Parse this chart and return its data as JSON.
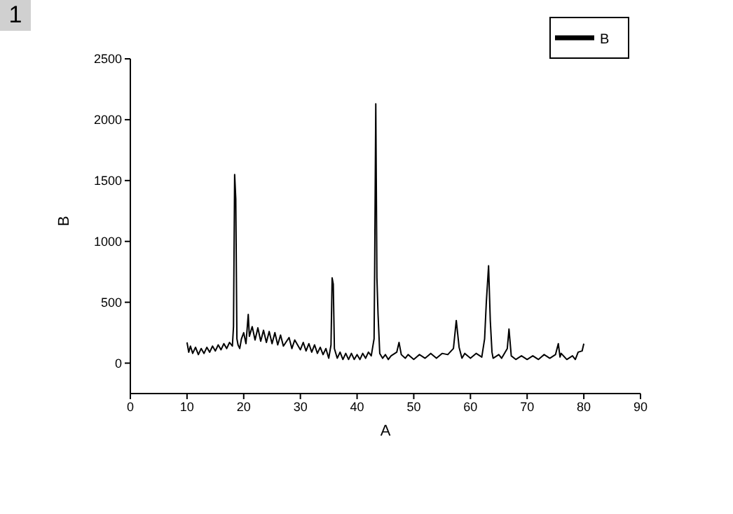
{
  "chart_data": {
    "type": "line",
    "xlabel": "A",
    "ylabel": "B",
    "annotations": [
      "1"
    ],
    "xlim": [
      0,
      90
    ],
    "xticks": [
      0,
      10,
      20,
      30,
      40,
      50,
      60,
      70,
      80,
      90
    ],
    "ylim": [
      -250,
      2500
    ],
    "yticks": [
      0,
      500,
      1000,
      1500,
      2000,
      2500
    ],
    "grid": false,
    "legend": "top right",
    "marker": "none",
    "line_style": "solid",
    "x": [
      10,
      10.3,
      10.6,
      11,
      11.5,
      12,
      12.5,
      13,
      13.5,
      14,
      14.5,
      15,
      15.5,
      16,
      16.5,
      17,
      17.5,
      18,
      18.2,
      18.4,
      18.6,
      18.8,
      19,
      19.3,
      19.6,
      20,
      20.4,
      20.8,
      21,
      21.5,
      22,
      22.5,
      23,
      23.5,
      24,
      24.5,
      25,
      25.5,
      26,
      26.5,
      27,
      28,
      28.5,
      29,
      30,
      30.5,
      31,
      31.5,
      32,
      32.5,
      33,
      33.5,
      34,
      34.5,
      35,
      35.4,
      35.6,
      35.8,
      36,
      36.5,
      37,
      37.5,
      38,
      38.5,
      39,
      39.5,
      40,
      40.5,
      41,
      41.5,
      42,
      42.5,
      43,
      43.1,
      43.3,
      43.5,
      43.7,
      44,
      44.5,
      45,
      45.5,
      46,
      47,
      47.4,
      47.8,
      48.5,
      49,
      50,
      51,
      52,
      53,
      54,
      55,
      56,
      57,
      57.5,
      58,
      58.5,
      59,
      60,
      61,
      62,
      62.5,
      62.8,
      63.2,
      63.5,
      63.8,
      64,
      65,
      65.5,
      66.5,
      66.8,
      67.2,
      68,
      69,
      70,
      71,
      72,
      73,
      74,
      75,
      75.5,
      75.8,
      76,
      77,
      78,
      78.5,
      79,
      79.7,
      80
    ],
    "series": [
      {
        "name": "B",
        "color": "#000000",
        "values": [
          170,
          90,
          140,
          80,
          130,
          70,
          120,
          80,
          130,
          90,
          140,
          100,
          150,
          110,
          160,
          120,
          170,
          140,
          300,
          1550,
          1350,
          200,
          150,
          120,
          200,
          250,
          160,
          400,
          220,
          300,
          190,
          290,
          180,
          270,
          170,
          260,
          160,
          250,
          150,
          230,
          140,
          210,
          120,
          190,
          110,
          170,
          100,
          160,
          90,
          150,
          80,
          130,
          70,
          120,
          40,
          150,
          700,
          650,
          120,
          40,
          90,
          30,
          80,
          30,
          80,
          30,
          70,
          30,
          80,
          40,
          90,
          60,
          200,
          760,
          2130,
          700,
          400,
          80,
          40,
          70,
          30,
          60,
          90,
          170,
          70,
          40,
          70,
          30,
          70,
          40,
          80,
          40,
          80,
          70,
          120,
          350,
          130,
          40,
          80,
          40,
          80,
          50,
          200,
          500,
          800,
          350,
          90,
          40,
          70,
          40,
          120,
          280,
          60,
          30,
          60,
          30,
          60,
          30,
          70,
          40,
          70,
          160,
          50,
          80,
          30,
          60,
          30,
          90,
          100,
          160
        ]
      }
    ]
  }
}
